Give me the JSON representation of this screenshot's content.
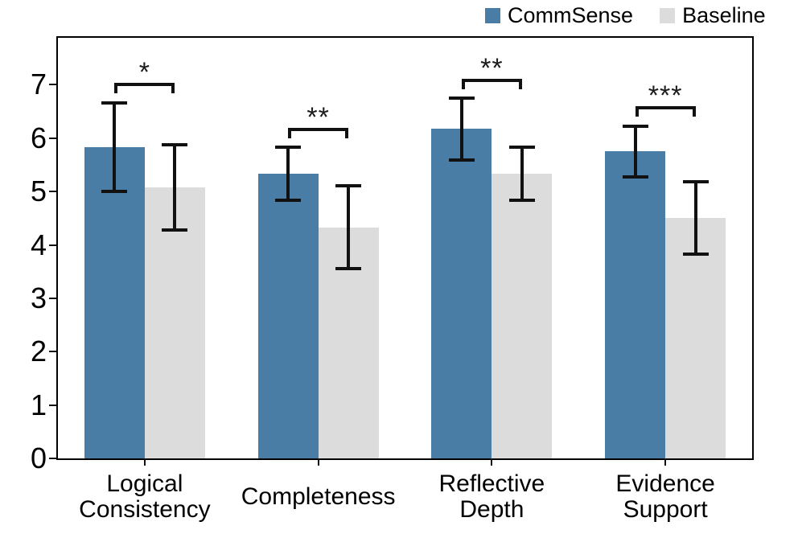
{
  "figure": {
    "background": "#ffffff",
    "axis_color": "#000000",
    "error_bar_color": "#111111"
  },
  "chart_data": {
    "type": "bar",
    "title": "",
    "xlabel": "",
    "ylabel": "",
    "categories": [
      "Logical Consistency",
      "Completeness",
      "Reflective Depth",
      "Evidence Support"
    ],
    "category_lines": [
      [
        "Logical",
        "Consistency"
      ],
      [
        "Completeness"
      ],
      [
        "Reflective",
        "Depth"
      ],
      [
        "Evidence",
        "Support"
      ]
    ],
    "series": [
      {
        "name": "CommSense",
        "color": "#4a7da5",
        "values": [
          5.83,
          5.33,
          6.17,
          5.75
        ],
        "errors": [
          0.83,
          0.5,
          0.58,
          0.47
        ]
      },
      {
        "name": "Baseline",
        "color": "#dcdcdc",
        "values": [
          5.08,
          4.33,
          5.33,
          4.5
        ],
        "errors": [
          0.8,
          0.78,
          0.5,
          0.68
        ]
      }
    ],
    "significance": [
      {
        "pair": "Logical Consistency",
        "label": "*",
        "bracket_y": 7.03
      },
      {
        "pair": "Completeness",
        "label": "**",
        "bracket_y": 6.2
      },
      {
        "pair": "Reflective Depth",
        "label": "**",
        "bracket_y": 7.11
      },
      {
        "pair": "Evidence Support",
        "label": "***",
        "bracket_y": 6.6
      }
    ],
    "yticks": [
      0,
      1,
      2,
      3,
      4,
      5,
      6,
      7
    ],
    "ylim": [
      0,
      7.88
    ],
    "grid": false,
    "legend_position": "top-right"
  }
}
